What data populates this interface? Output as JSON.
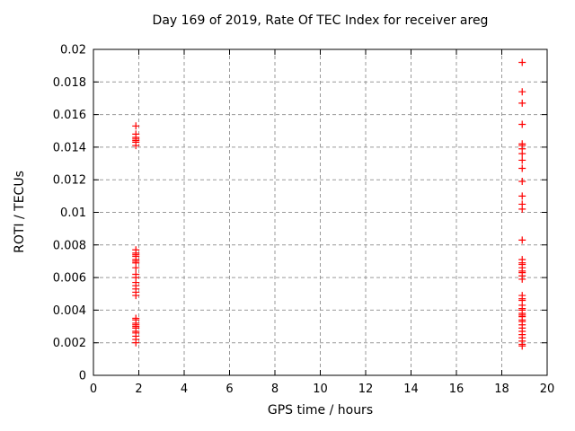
{
  "window": {
    "background": "#ffffff"
  },
  "chart_data": {
    "type": "scatter",
    "title": "Day 169 of 2019, Rate Of TEC Index for receiver areg",
    "xlabel": "GPS time / hours",
    "ylabel": "ROTI / TECUs",
    "xlim": [
      0,
      20
    ],
    "ylim": [
      0,
      0.02
    ],
    "xticks": [
      0,
      2,
      4,
      6,
      8,
      10,
      12,
      14,
      16,
      18,
      20
    ],
    "xtick_labels": [
      "0",
      "2",
      "4",
      "6",
      "8",
      "10",
      "12",
      "14",
      "16",
      "18",
      "20"
    ],
    "yticks": [
      0,
      0.002,
      0.004,
      0.006,
      0.008,
      0.01,
      0.012,
      0.014,
      0.016,
      0.018,
      0.02
    ],
    "ytick_labels": [
      "0",
      "0.002",
      "0.004",
      "0.006",
      "0.008",
      "0.01",
      "0.012",
      "0.014",
      "0.016",
      "0.018",
      "0.02"
    ],
    "grid": true,
    "legend": "none",
    "marker": "plus",
    "marker_color": "#ff0000",
    "grid_color": "#9a9a9a",
    "axis_color": "#000000",
    "series": [
      {
        "name": "ROTI",
        "points": [
          [
            1.87,
            0.0153
          ],
          [
            1.87,
            0.0148
          ],
          [
            1.87,
            0.0146
          ],
          [
            1.87,
            0.0145
          ],
          [
            1.87,
            0.0144
          ],
          [
            1.87,
            0.0143
          ],
          [
            1.87,
            0.0141
          ],
          [
            1.87,
            0.0077
          ],
          [
            1.87,
            0.0075
          ],
          [
            1.87,
            0.0074
          ],
          [
            1.87,
            0.0073
          ],
          [
            1.87,
            0.0071
          ],
          [
            1.87,
            0.007
          ],
          [
            1.87,
            0.0069
          ],
          [
            1.87,
            0.0066
          ],
          [
            1.87,
            0.0062
          ],
          [
            1.87,
            0.006
          ],
          [
            1.87,
            0.0057
          ],
          [
            1.87,
            0.0055
          ],
          [
            1.87,
            0.0053
          ],
          [
            1.87,
            0.0051
          ],
          [
            1.87,
            0.0049
          ],
          [
            1.87,
            0.0035
          ],
          [
            1.87,
            0.0034
          ],
          [
            1.87,
            0.0032
          ],
          [
            1.87,
            0.0031
          ],
          [
            1.87,
            0.003
          ],
          [
            1.87,
            0.0029
          ],
          [
            1.87,
            0.0027
          ],
          [
            1.87,
            0.0026
          ],
          [
            1.87,
            0.0024
          ],
          [
            1.87,
            0.0022
          ],
          [
            1.87,
            0.002
          ],
          [
            18.9,
            0.0192
          ],
          [
            18.9,
            0.0174
          ],
          [
            18.9,
            0.0167
          ],
          [
            18.9,
            0.0154
          ],
          [
            18.9,
            0.0142
          ],
          [
            18.9,
            0.0141
          ],
          [
            18.9,
            0.0139
          ],
          [
            18.9,
            0.0136
          ],
          [
            18.9,
            0.0132
          ],
          [
            18.9,
            0.0127
          ],
          [
            18.9,
            0.0119
          ],
          [
            18.9,
            0.011
          ],
          [
            18.9,
            0.0105
          ],
          [
            18.9,
            0.0102
          ],
          [
            18.9,
            0.0083
          ],
          [
            18.9,
            0.0071
          ],
          [
            18.9,
            0.0069
          ],
          [
            18.9,
            0.0068
          ],
          [
            18.9,
            0.0066
          ],
          [
            18.9,
            0.0064
          ],
          [
            18.9,
            0.0063
          ],
          [
            18.9,
            0.0061
          ],
          [
            18.9,
            0.0059
          ],
          [
            18.9,
            0.0049
          ],
          [
            18.9,
            0.0047
          ],
          [
            18.9,
            0.0046
          ],
          [
            18.9,
            0.0043
          ],
          [
            18.9,
            0.0041
          ],
          [
            18.9,
            0.004
          ],
          [
            18.9,
            0.0038
          ],
          [
            18.9,
            0.0037
          ],
          [
            18.9,
            0.0036
          ],
          [
            18.9,
            0.0034
          ],
          [
            18.9,
            0.0033
          ],
          [
            18.9,
            0.0031
          ],
          [
            18.9,
            0.0029
          ],
          [
            18.9,
            0.0027
          ],
          [
            18.9,
            0.0025
          ],
          [
            18.9,
            0.0023
          ],
          [
            18.9,
            0.0021
          ],
          [
            18.9,
            0.0019
          ],
          [
            18.9,
            0.0018
          ]
        ]
      }
    ]
  }
}
